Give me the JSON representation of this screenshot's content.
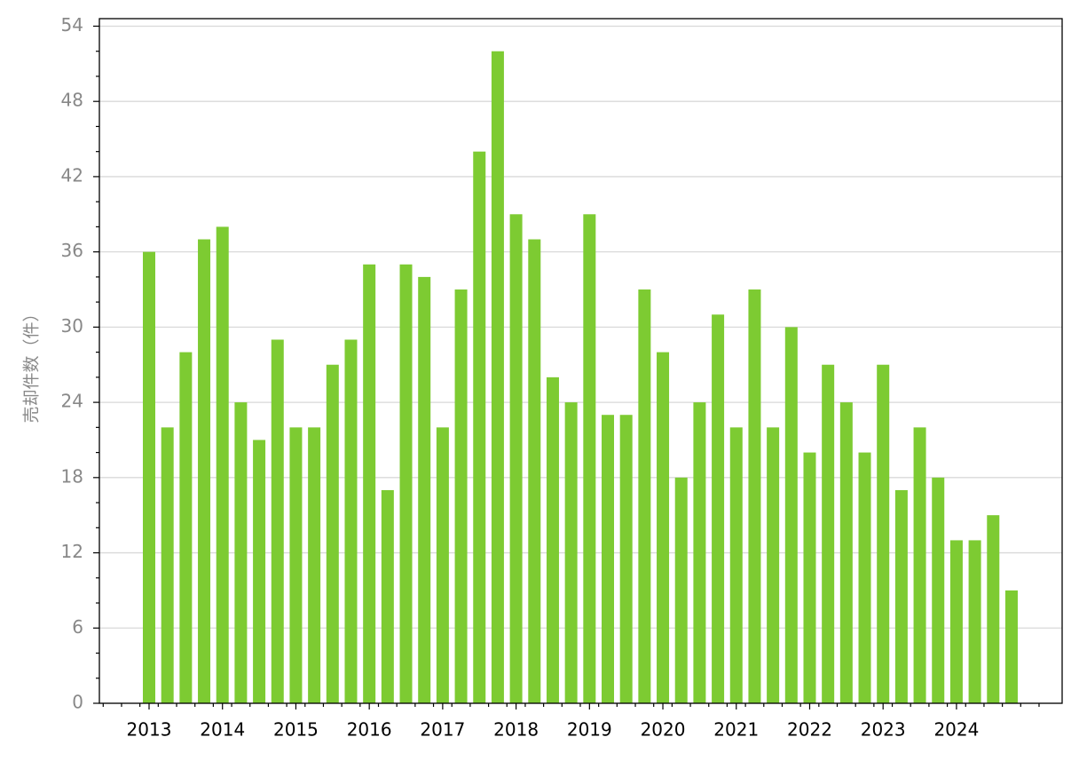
{
  "chart_data": {
    "type": "bar",
    "y_label": "売却件数（件）",
    "categories": [
      "2013",
      null,
      null,
      null,
      "2014",
      null,
      null,
      null,
      "2015",
      null,
      null,
      null,
      "2016",
      null,
      null,
      null,
      "2017",
      null,
      null,
      null,
      "2018",
      null,
      null,
      null,
      "2019",
      null,
      null,
      null,
      "2020",
      null,
      null,
      null,
      "2021",
      null,
      null,
      null,
      "2022",
      null,
      null,
      null,
      "2023",
      null,
      null,
      null,
      "2024",
      null,
      null,
      null
    ],
    "values": [
      36,
      22,
      28,
      37,
      38,
      24,
      21,
      29,
      22,
      22,
      27,
      29,
      35,
      17,
      35,
      34,
      22,
      33,
      44,
      52,
      39,
      37,
      26,
      24,
      39,
      23,
      23,
      33,
      28,
      18,
      24,
      31,
      22,
      33,
      22,
      30,
      20,
      27,
      24,
      20,
      27,
      17,
      22,
      18,
      13,
      13,
      15,
      9
    ],
    "color": "#7dcb32",
    "ylim": [
      0,
      54.6
    ],
    "yticks": [
      0,
      6,
      12,
      18,
      24,
      30,
      36,
      42,
      48,
      54
    ],
    "grid": true
  }
}
